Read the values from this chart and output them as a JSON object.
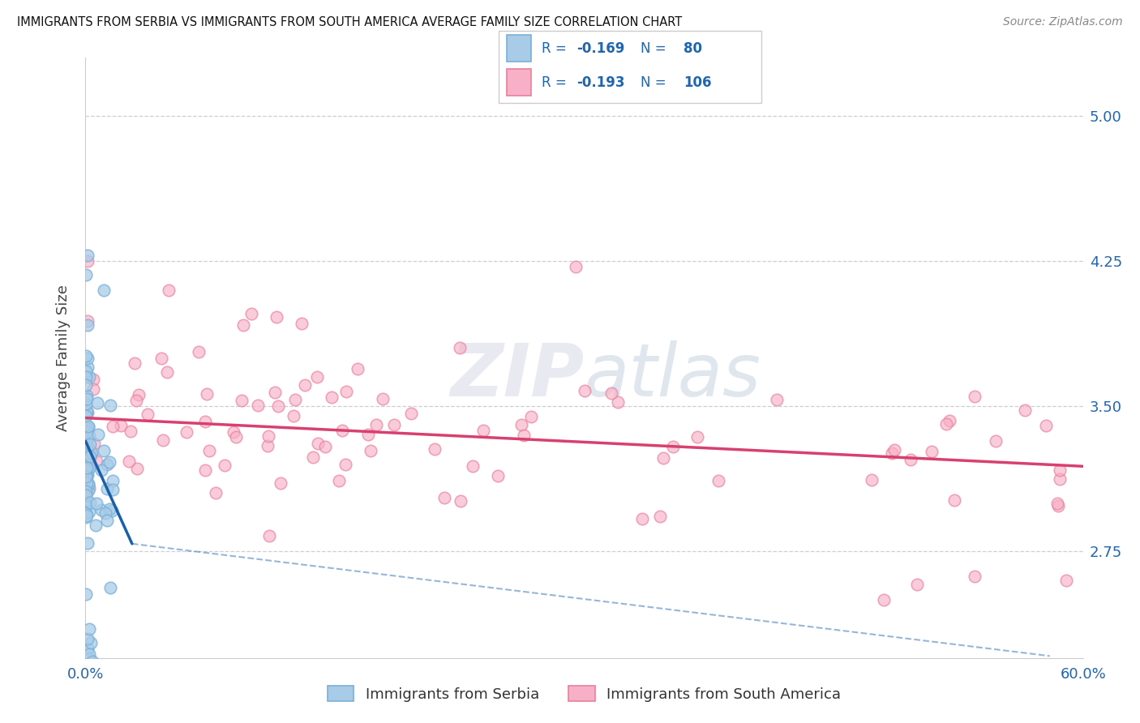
{
  "title": "IMMIGRANTS FROM SERBIA VS IMMIGRANTS FROM SOUTH AMERICA AVERAGE FAMILY SIZE CORRELATION CHART",
  "source": "Source: ZipAtlas.com",
  "ylabel": "Average Family Size",
  "ytick_values": [
    2.75,
    3.5,
    4.25,
    5.0
  ],
  "xlim": [
    0.0,
    0.6
  ],
  "ylim": [
    2.2,
    5.3
  ],
  "legend1_label": "Immigrants from Serbia",
  "legend2_label": "Immigrants from South America",
  "r1": "-0.169",
  "n1": "80",
  "r2": "-0.193",
  "n2": "106",
  "color_serbia_fill": "#a8cce8",
  "color_serbia_edge": "#7ab0d8",
  "color_serbia_line": "#1a5fa8",
  "color_sa_fill": "#f8b0c8",
  "color_sa_edge": "#e8809a",
  "color_sa_line": "#d84070",
  "legend_text_color": "#2166ac",
  "legend_r_color": "#2166ac",
  "legend_n_color": "#2166ac",
  "watermark_color": "#d0d0e0",
  "grid_color": "#c8c8d8",
  "title_color": "#111111",
  "source_color": "#888888",
  "axis_tick_color": "#2166ac",
  "serbia_trend_x0": 0.0,
  "serbia_trend_x1_solid": 0.028,
  "serbia_trend_x1_dash": 0.58,
  "serbia_trend_y0": 3.32,
  "serbia_trend_y1_solid": 2.79,
  "serbia_trend_y1_dash": 2.21,
  "sa_trend_x0": 0.0,
  "sa_trend_x1": 0.6,
  "sa_trend_y0": 3.44,
  "sa_trend_y1": 3.19
}
